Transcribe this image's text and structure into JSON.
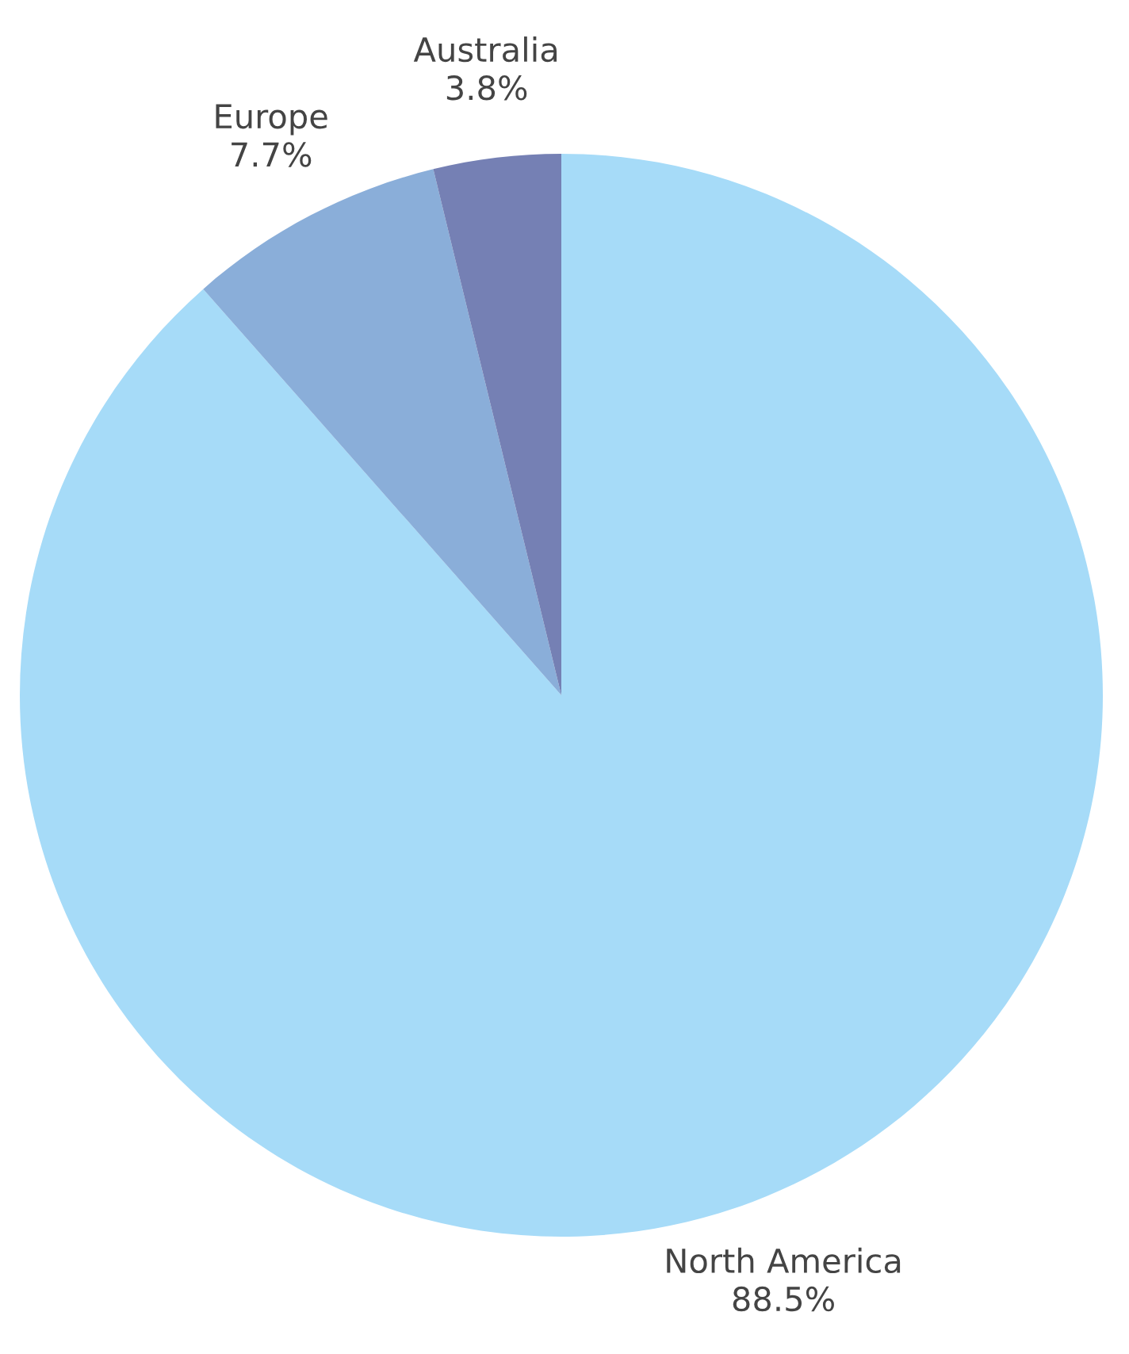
{
  "chart_data": {
    "type": "pie",
    "categories": [
      "North America",
      "Europe",
      "Australia"
    ],
    "values": [
      88.5,
      7.7,
      3.8
    ],
    "value_labels": [
      "88.5%",
      "7.7%",
      "3.8%"
    ],
    "colors": [
      "#a6dbf8",
      "#8aaed9",
      "#7580b4"
    ]
  }
}
